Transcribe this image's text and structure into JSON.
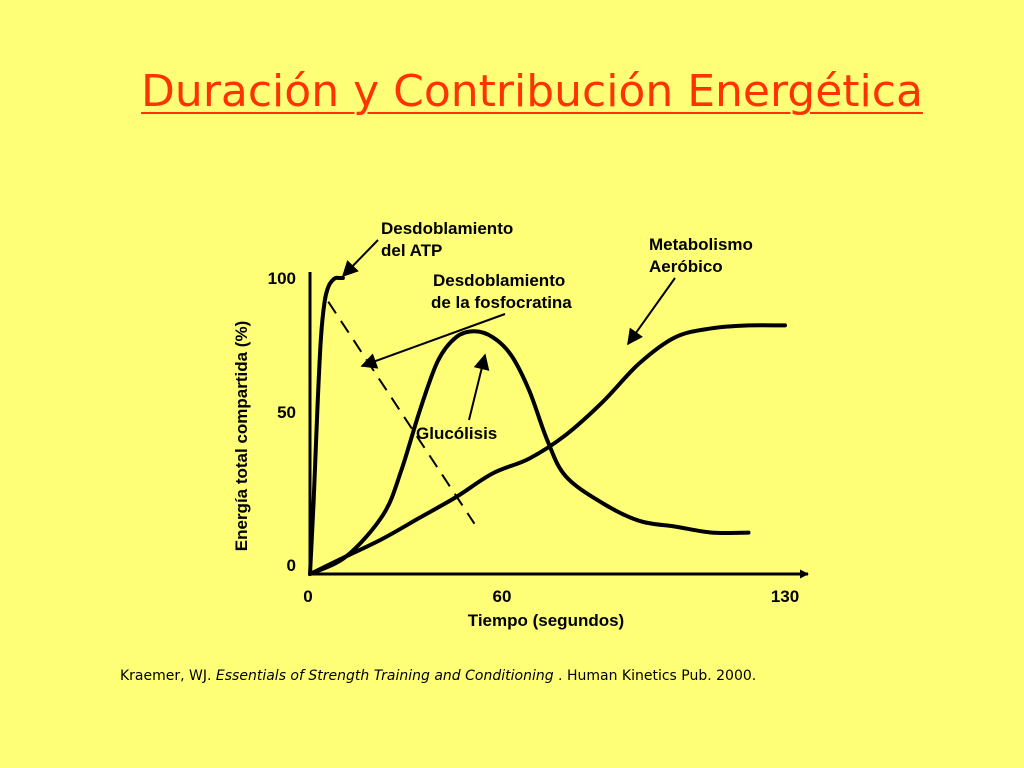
{
  "slide": {
    "title": "Duración y Contribución Energética",
    "citation": {
      "author": "Kraemer, WJ. ",
      "book": "Essentials of Strength Training and Conditioning",
      "sep": " . ",
      "publisher": "Human Kinetics Pub. 2000."
    }
  },
  "colors": {
    "background": "#FFFF77",
    "title": "#FF3300",
    "ink": "#000000"
  },
  "chart_data": {
    "type": "line",
    "title": "",
    "xlabel": "Tiempo (segundos)",
    "ylabel": "Energía total compartida (%)",
    "xlim": [
      0,
      130
    ],
    "ylim": [
      0,
      100
    ],
    "xticks": [
      0,
      60,
      130
    ],
    "yticks": [
      0,
      50,
      100
    ],
    "grid": false,
    "series": [
      {
        "name": "Desdoblamiento del ATP",
        "style": "solid",
        "x": [
          0,
          1,
          2,
          3,
          4,
          5,
          6,
          7,
          8,
          9
        ],
        "y": [
          0,
          25,
          55,
          80,
          92,
          97,
          99,
          100,
          100,
          100
        ]
      },
      {
        "name": "Desdoblamiento de la fosfocratina",
        "style": "dashed",
        "x": [
          5,
          15,
          25,
          35,
          45
        ],
        "y": [
          92,
          72,
          51,
          31,
          17
        ]
      },
      {
        "name": "Glucólisis",
        "style": "solid",
        "x": [
          0,
          10,
          20,
          25,
          30,
          35,
          40,
          45,
          50,
          55,
          60,
          65,
          70,
          80,
          90,
          100,
          110,
          120
        ],
        "y": [
          0,
          6,
          20,
          35,
          55,
          72,
          80,
          82,
          80,
          74,
          62,
          45,
          33,
          24,
          18,
          16,
          14,
          14
        ]
      },
      {
        "name": "Metabolismo Aeróbico",
        "style": "solid",
        "x": [
          0,
          10,
          20,
          30,
          40,
          50,
          60,
          70,
          80,
          90,
          100,
          110,
          120,
          130
        ],
        "y": [
          0,
          6,
          12,
          19,
          26,
          34,
          39,
          47,
          58,
          71,
          80,
          83,
          84,
          84
        ]
      }
    ],
    "annotations": [
      {
        "lines": [
          "Desdoblamiento",
          "del ATP"
        ]
      },
      {
        "lines": [
          "Desdoblamiento",
          "de la fosfocratina"
        ]
      },
      {
        "lines": [
          "Glucólisis"
        ]
      },
      {
        "lines": [
          "Metabolismo",
          "Aeróbico"
        ]
      }
    ]
  }
}
